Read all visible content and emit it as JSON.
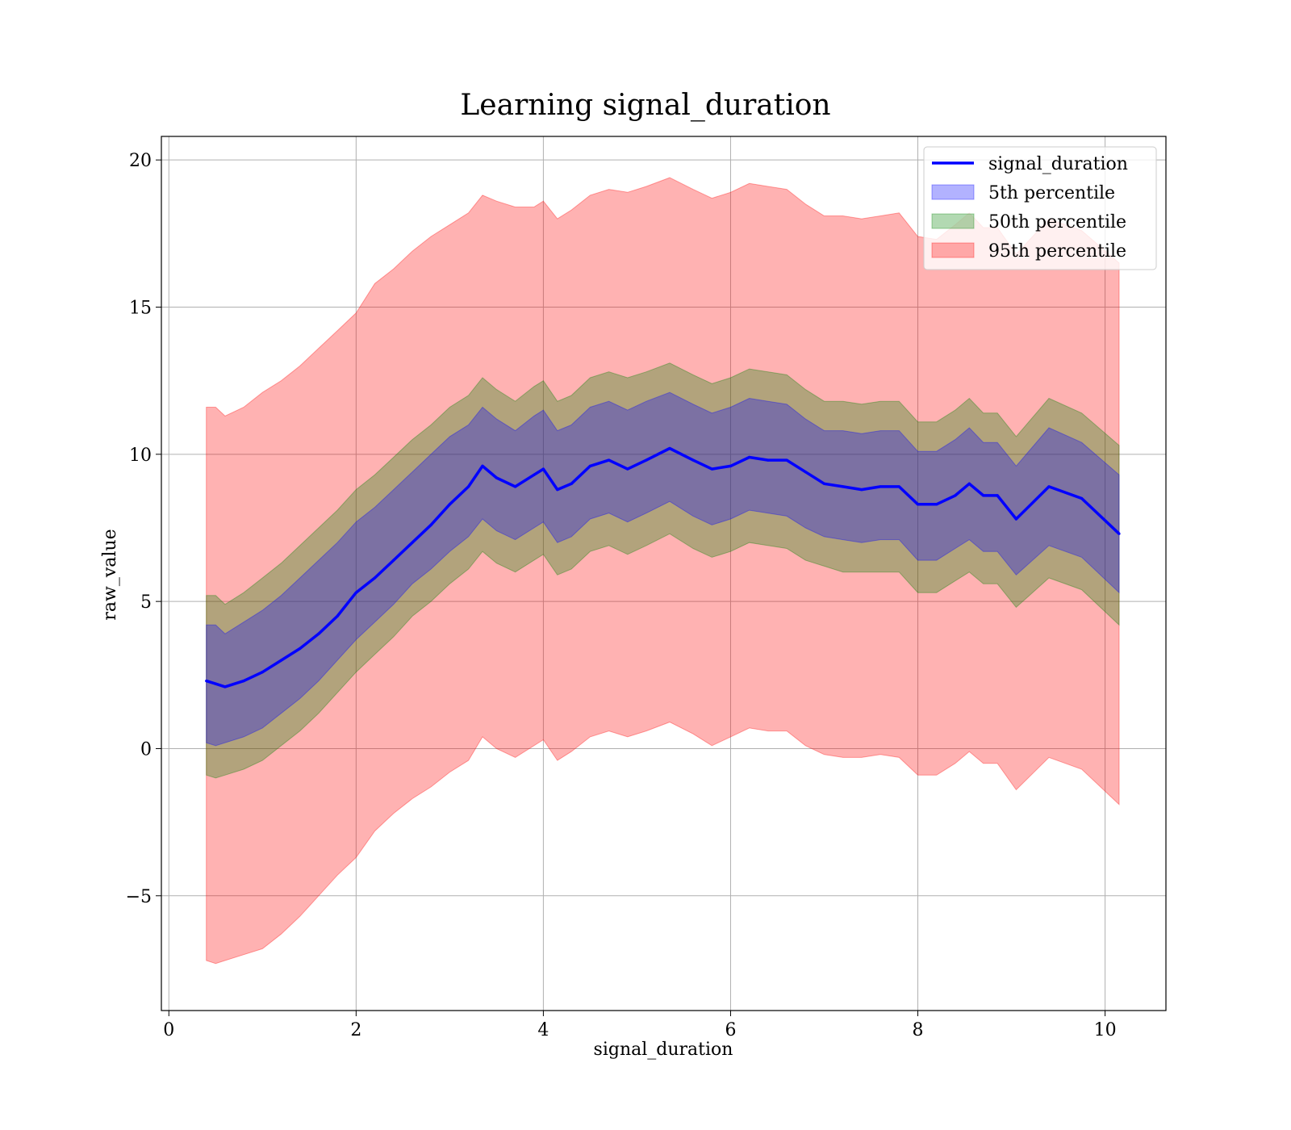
{
  "chart_data": {
    "type": "area",
    "title": "Learning signal_duration",
    "xlabel": "signal_duration",
    "ylabel": "raw_value",
    "xlim": [
      -0.08,
      10.65
    ],
    "ylim": [
      -8.9,
      20.8
    ],
    "xticks": [
      0,
      2,
      4,
      6,
      8,
      10
    ],
    "yticks": [
      -5,
      0,
      5,
      10,
      15,
      20
    ],
    "ytick_labels": [
      "−5",
      "0",
      "5",
      "10",
      "15",
      "20"
    ],
    "grid": true,
    "legend_position": "upper-right",
    "legend": [
      {
        "label": "signal_duration",
        "kind": "line",
        "color": "#0000ff"
      },
      {
        "label": "5th percentile",
        "kind": "patch",
        "color": "#0000ff"
      },
      {
        "label": "50th percentile",
        "kind": "patch",
        "color": "#008000"
      },
      {
        "label": "95th percentile",
        "kind": "patch",
        "color": "#ff0000"
      }
    ],
    "x": [
      0.4,
      0.5,
      0.6,
      0.8,
      1.0,
      1.2,
      1.4,
      1.6,
      1.8,
      2.0,
      2.2,
      2.4,
      2.6,
      2.8,
      3.0,
      3.2,
      3.35,
      3.5,
      3.7,
      3.9,
      4.0,
      4.15,
      4.3,
      4.5,
      4.7,
      4.9,
      5.1,
      5.35,
      5.6,
      5.8,
      6.0,
      6.2,
      6.4,
      6.6,
      6.8,
      7.0,
      7.2,
      7.4,
      7.6,
      7.8,
      8.0,
      8.2,
      8.4,
      8.55,
      8.7,
      8.85,
      9.05,
      9.4,
      9.75,
      10.15
    ],
    "series": [
      {
        "name": "signal_duration",
        "color": "#0000ff",
        "values": [
          2.3,
          2.2,
          2.1,
          2.3,
          2.6,
          3.0,
          3.4,
          3.9,
          4.5,
          5.3,
          5.8,
          6.4,
          7.0,
          7.6,
          8.3,
          8.9,
          9.6,
          9.2,
          8.9,
          9.3,
          9.5,
          8.8,
          9.0,
          9.6,
          9.8,
          9.5,
          9.8,
          10.2,
          9.8,
          9.5,
          9.6,
          9.9,
          9.8,
          9.8,
          9.4,
          9.0,
          8.9,
          8.8,
          8.9,
          8.9,
          8.3,
          8.3,
          8.6,
          9.0,
          8.6,
          8.6,
          7.8,
          8.9,
          8.5,
          7.3
        ]
      },
      {
        "name": "95th percentile",
        "color": "#ff0000",
        "upper": [
          11.6,
          11.6,
          11.3,
          11.6,
          12.1,
          12.5,
          13.0,
          13.6,
          14.2,
          14.8,
          15.8,
          16.3,
          16.9,
          17.4,
          17.8,
          18.2,
          18.8,
          18.6,
          18.4,
          18.4,
          18.6,
          18.0,
          18.3,
          18.8,
          19.0,
          18.9,
          19.1,
          19.4,
          19.0,
          18.7,
          18.9,
          19.2,
          19.1,
          19.0,
          18.5,
          18.1,
          18.1,
          18.0,
          18.1,
          18.2,
          17.4,
          17.3,
          17.8,
          18.2,
          17.7,
          17.7,
          16.8,
          18.0,
          17.6,
          16.5
        ],
        "lower": [
          -7.2,
          -7.3,
          -7.2,
          -7.0,
          -6.8,
          -6.3,
          -5.7,
          -5.0,
          -4.3,
          -3.7,
          -2.8,
          -2.2,
          -1.7,
          -1.3,
          -0.8,
          -0.4,
          0.4,
          0.0,
          -0.3,
          0.1,
          0.3,
          -0.4,
          -0.1,
          0.4,
          0.6,
          0.4,
          0.6,
          0.9,
          0.5,
          0.1,
          0.4,
          0.7,
          0.6,
          0.6,
          0.1,
          -0.2,
          -0.3,
          -0.3,
          -0.2,
          -0.3,
          -0.9,
          -0.9,
          -0.5,
          -0.1,
          -0.5,
          -0.5,
          -1.4,
          -0.3,
          -0.7,
          -1.9
        ]
      },
      {
        "name": "50th percentile",
        "color": "#008000",
        "upper": [
          5.2,
          5.2,
          4.9,
          5.3,
          5.8,
          6.3,
          6.9,
          7.5,
          8.1,
          8.8,
          9.3,
          9.9,
          10.5,
          11.0,
          11.6,
          12.0,
          12.6,
          12.2,
          11.8,
          12.3,
          12.5,
          11.8,
          12.0,
          12.6,
          12.8,
          12.6,
          12.8,
          13.1,
          12.7,
          12.4,
          12.6,
          12.9,
          12.8,
          12.7,
          12.2,
          11.8,
          11.8,
          11.7,
          11.8,
          11.8,
          11.1,
          11.1,
          11.5,
          11.9,
          11.4,
          11.4,
          10.6,
          11.9,
          11.4,
          10.3
        ],
        "lower": [
          -0.9,
          -1.0,
          -0.9,
          -0.7,
          -0.4,
          0.1,
          0.6,
          1.2,
          1.9,
          2.6,
          3.2,
          3.8,
          4.5,
          5.0,
          5.6,
          6.1,
          6.7,
          6.3,
          6.0,
          6.4,
          6.6,
          5.9,
          6.1,
          6.7,
          6.9,
          6.6,
          6.9,
          7.3,
          6.8,
          6.5,
          6.7,
          7.0,
          6.9,
          6.8,
          6.4,
          6.2,
          6.0,
          6.0,
          6.0,
          6.0,
          5.3,
          5.3,
          5.7,
          6.0,
          5.6,
          5.6,
          4.8,
          5.8,
          5.4,
          4.2
        ]
      },
      {
        "name": "5th percentile",
        "color": "#0000ff",
        "upper": [
          4.2,
          4.2,
          3.9,
          4.3,
          4.7,
          5.2,
          5.8,
          6.4,
          7.0,
          7.7,
          8.2,
          8.8,
          9.4,
          10.0,
          10.6,
          11.0,
          11.6,
          11.2,
          10.8,
          11.3,
          11.5,
          10.8,
          11.0,
          11.6,
          11.8,
          11.5,
          11.8,
          12.1,
          11.7,
          11.4,
          11.6,
          11.9,
          11.8,
          11.7,
          11.2,
          10.8,
          10.8,
          10.7,
          10.8,
          10.8,
          10.1,
          10.1,
          10.5,
          10.9,
          10.4,
          10.4,
          9.6,
          10.9,
          10.4,
          9.3
        ],
        "lower": [
          0.2,
          0.1,
          0.2,
          0.4,
          0.7,
          1.2,
          1.7,
          2.3,
          3.0,
          3.7,
          4.3,
          4.9,
          5.6,
          6.1,
          6.7,
          7.2,
          7.8,
          7.4,
          7.1,
          7.5,
          7.7,
          7.0,
          7.2,
          7.8,
          8.0,
          7.7,
          8.0,
          8.4,
          7.9,
          7.6,
          7.8,
          8.1,
          8.0,
          7.9,
          7.5,
          7.2,
          7.1,
          7.0,
          7.1,
          7.1,
          6.4,
          6.4,
          6.8,
          7.1,
          6.7,
          6.7,
          5.9,
          6.9,
          6.5,
          5.3
        ]
      }
    ]
  }
}
